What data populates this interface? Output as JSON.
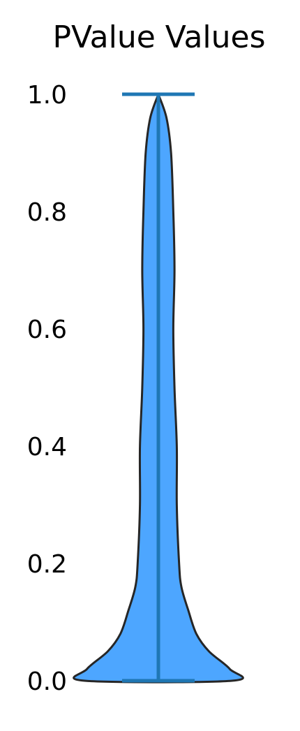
{
  "chart_data": {
    "type": "violin",
    "title": "PValue Values",
    "xlabel": "",
    "ylabel": "",
    "ylim": [
      0,
      1
    ],
    "yticks": [
      0.0,
      0.2,
      0.4,
      0.6,
      0.8,
      1.0
    ],
    "ytick_labels": [
      "0.0",
      "0.2",
      "0.4",
      "0.6",
      "0.8",
      "1.0"
    ],
    "grid": false,
    "show_extrema": true,
    "show_median": true,
    "summary": {
      "min": 0.0,
      "max": 1.0,
      "median": 0.0
    },
    "density": [
      {
        "y": 0.0,
        "w": 0.64
      },
      {
        "y": 0.02,
        "w": 0.62
      },
      {
        "y": 0.05,
        "w": 0.44
      },
      {
        "y": 0.08,
        "w": 0.33
      },
      {
        "y": 0.12,
        "w": 0.26
      },
      {
        "y": 0.16,
        "w": 0.2
      },
      {
        "y": 0.2,
        "w": 0.18
      },
      {
        "y": 0.3,
        "w": 0.16
      },
      {
        "y": 0.4,
        "w": 0.16
      },
      {
        "y": 0.5,
        "w": 0.14
      },
      {
        "y": 0.6,
        "w": 0.13
      },
      {
        "y": 0.7,
        "w": 0.14
      },
      {
        "y": 0.8,
        "w": 0.13
      },
      {
        "y": 0.9,
        "w": 0.11
      },
      {
        "y": 0.96,
        "w": 0.07
      },
      {
        "y": 1.0,
        "w": 0.0
      }
    ],
    "colors": {
      "body_fill": "#4da6ff",
      "body_edge": "#262626",
      "lines": "#1f77b4"
    }
  }
}
